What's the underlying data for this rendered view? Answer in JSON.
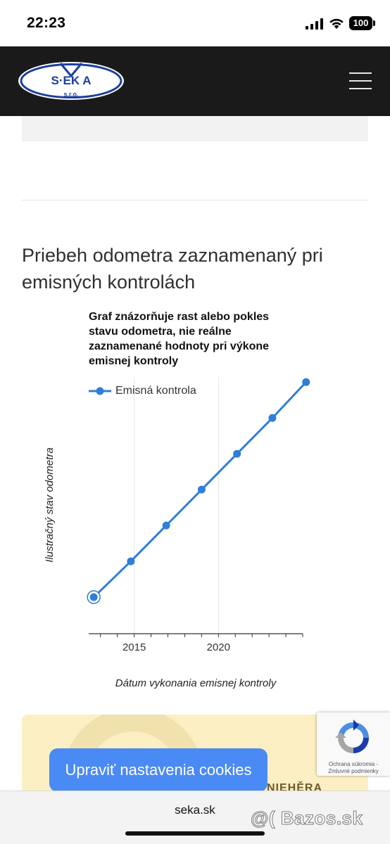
{
  "status_bar": {
    "time": "22:23",
    "battery": "100"
  },
  "header": {
    "logo_text": "S·EK A",
    "logo_subtext": "s.r.o."
  },
  "section": {
    "title": "Priebeh odometra zaznamenaný pri emisných kontrolách"
  },
  "chart_data": {
    "type": "line",
    "title": "Graf znázorňuje rast alebo pokles stavu odometra, nie reálne zaznamenané hodnoty pri výkone emisnej kontroly",
    "xlabel": "Dátum vykonania emisnej kontroly",
    "ylabel": "Ilustračný stav odometra",
    "x_ticks": [
      "2015",
      "2020"
    ],
    "xlim": [
      2012.3,
      2025.0
    ],
    "ylim": [
      0,
      100
    ],
    "legend_position": "top-left",
    "grid": true,
    "series": [
      {
        "name": "Emisná kontrola",
        "color": "#2f7ed8",
        "points": [
          {
            "x": 2012.6,
            "y": 14
          },
          {
            "x": 2014.8,
            "y": 28
          },
          {
            "x": 2016.9,
            "y": 42
          },
          {
            "x": 2019.0,
            "y": 56
          },
          {
            "x": 2021.1,
            "y": 70
          },
          {
            "x": 2023.2,
            "y": 84
          },
          {
            "x": 2025.2,
            "y": 98
          }
        ]
      }
    ]
  },
  "yellow_box": {
    "text": "NIEHĚRA"
  },
  "cookie": {
    "button_label": "Upraviť nastavenia cookies"
  },
  "recaptcha": {
    "links": "Ochrana súkromia - Zmluvné podmienky"
  },
  "browser": {
    "url": "seka.sk"
  },
  "watermark": {
    "text": "@( Bazos.sk"
  }
}
